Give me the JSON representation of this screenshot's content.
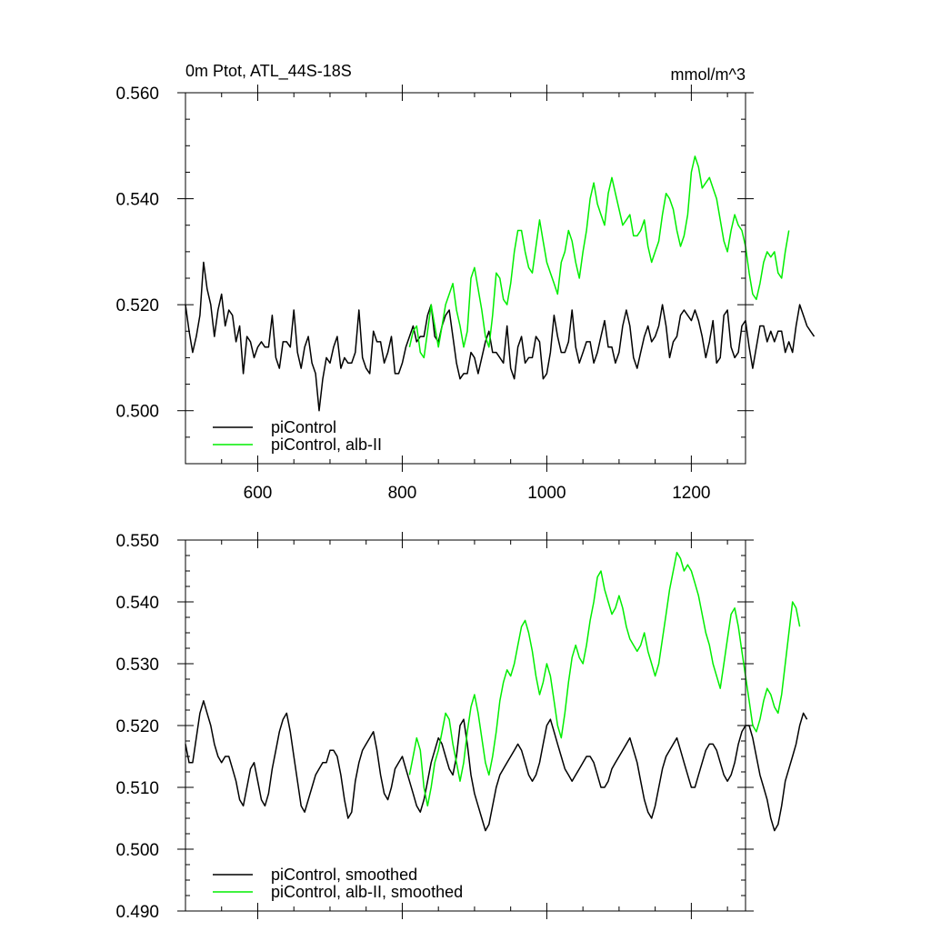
{
  "chart_data": [
    {
      "type": "line",
      "title": "0m Ptot, ATL_44S-18S",
      "units": "mmol/m^3",
      "xlim": [
        500,
        1275
      ],
      "ylim": [
        0.49,
        0.56
      ],
      "xticks": [
        600,
        800,
        1000,
        1200
      ],
      "xtick_labels": [
        "600",
        "800",
        "1000",
        "1200"
      ],
      "yticks": [
        0.5,
        0.52,
        0.54,
        0.56
      ],
      "ytick_labels": [
        "0.500",
        "0.520",
        "0.540",
        "0.560"
      ],
      "legend_position": "lower-left",
      "grid": false,
      "series": [
        {
          "name": "piControl",
          "color": "#000000",
          "x_start": 500,
          "x_step": 5,
          "values": [
            0.52,
            0.515,
            0.511,
            0.514,
            0.518,
            0.528,
            0.523,
            0.52,
            0.514,
            0.519,
            0.522,
            0.516,
            0.519,
            0.518,
            0.513,
            0.516,
            0.507,
            0.514,
            0.513,
            0.51,
            0.512,
            0.513,
            0.512,
            0.512,
            0.518,
            0.51,
            0.508,
            0.513,
            0.513,
            0.512,
            0.519,
            0.511,
            0.508,
            0.512,
            0.514,
            0.509,
            0.507,
            0.5,
            0.506,
            0.51,
            0.509,
            0.512,
            0.514,
            0.508,
            0.51,
            0.509,
            0.509,
            0.511,
            0.519,
            0.51,
            0.508,
            0.507,
            0.515,
            0.513,
            0.513,
            0.509,
            0.511,
            0.514,
            0.507,
            0.507,
            0.509,
            0.512,
            0.514,
            0.516,
            0.513,
            0.514,
            0.514,
            0.518,
            0.52,
            0.514,
            0.513,
            0.516,
            0.518,
            0.519,
            0.514,
            0.509,
            0.506,
            0.507,
            0.507,
            0.511,
            0.51,
            0.507,
            0.51,
            0.513,
            0.515,
            0.511,
            0.511,
            0.51,
            0.509,
            0.516,
            0.508,
            0.506,
            0.512,
            0.514,
            0.509,
            0.51,
            0.51,
            0.514,
            0.513,
            0.506,
            0.507,
            0.511,
            0.518,
            0.514,
            0.511,
            0.511,
            0.513,
            0.519,
            0.512,
            0.509,
            0.511,
            0.513,
            0.513,
            0.509,
            0.511,
            0.514,
            0.517,
            0.512,
            0.512,
            0.509,
            0.511,
            0.516,
            0.519,
            0.516,
            0.51,
            0.508,
            0.511,
            0.514,
            0.516,
            0.513,
            0.514,
            0.516,
            0.52,
            0.516,
            0.51,
            0.513,
            0.514,
            0.518,
            0.519,
            0.518,
            0.517,
            0.519,
            0.517,
            0.514,
            0.51,
            0.513,
            0.517,
            0.509,
            0.51,
            0.518,
            0.519,
            0.512,
            0.51,
            0.511,
            0.516,
            0.517,
            0.512,
            0.508,
            0.512,
            0.516,
            0.516,
            0.513,
            0.515,
            0.513,
            0.515,
            0.515,
            0.511,
            0.513,
            0.511,
            0.516,
            0.52,
            0.518,
            0.516,
            0.515,
            0.514
          ]
        },
        {
          "name": "piControl, alb-II",
          "color": "#00ee00",
          "x_start": 810,
          "x_step": 5,
          "values": [
            0.512,
            0.515,
            0.516,
            0.511,
            0.51,
            0.515,
            0.52,
            0.516,
            0.512,
            0.516,
            0.52,
            0.522,
            0.524,
            0.519,
            0.516,
            0.512,
            0.515,
            0.525,
            0.527,
            0.523,
            0.519,
            0.514,
            0.512,
            0.518,
            0.526,
            0.525,
            0.521,
            0.52,
            0.524,
            0.53,
            0.534,
            0.534,
            0.53,
            0.527,
            0.526,
            0.531,
            0.536,
            0.532,
            0.528,
            0.526,
            0.524,
            0.522,
            0.528,
            0.53,
            0.534,
            0.532,
            0.528,
            0.525,
            0.53,
            0.534,
            0.54,
            0.543,
            0.539,
            0.537,
            0.535,
            0.541,
            0.544,
            0.541,
            0.538,
            0.535,
            0.536,
            0.537,
            0.533,
            0.533,
            0.534,
            0.536,
            0.531,
            0.528,
            0.53,
            0.532,
            0.537,
            0.541,
            0.54,
            0.538,
            0.534,
            0.531,
            0.533,
            0.537,
            0.545,
            0.548,
            0.546,
            0.542,
            0.543,
            0.544,
            0.542,
            0.54,
            0.536,
            0.532,
            0.53,
            0.534,
            0.537,
            0.535,
            0.534,
            0.531,
            0.526,
            0.522,
            0.521,
            0.524,
            0.528,
            0.53,
            0.529,
            0.53,
            0.526,
            0.525,
            0.53,
            0.534
          ]
        }
      ]
    },
    {
      "type": "line",
      "xlim": [
        500,
        1275
      ],
      "ylim": [
        0.49,
        0.55
      ],
      "xticks": [
        600,
        800,
        1000,
        1200
      ],
      "yticks": [
        0.49,
        0.5,
        0.51,
        0.52,
        0.53,
        0.54,
        0.55
      ],
      "ytick_labels": [
        "0.490",
        "0.500",
        "0.510",
        "0.520",
        "0.530",
        "0.540",
        "0.550"
      ],
      "legend_position": "lower-left",
      "grid": false,
      "series": [
        {
          "name": "piControl, smoothed",
          "color": "#000000",
          "x_start": 500,
          "x_step": 5,
          "values": [
            0.517,
            0.514,
            0.514,
            0.518,
            0.522,
            0.524,
            0.522,
            0.52,
            0.517,
            0.515,
            0.514,
            0.515,
            0.515,
            0.513,
            0.511,
            0.508,
            0.507,
            0.51,
            0.513,
            0.514,
            0.511,
            0.508,
            0.507,
            0.509,
            0.513,
            0.516,
            0.519,
            0.521,
            0.522,
            0.519,
            0.515,
            0.511,
            0.507,
            0.506,
            0.508,
            0.51,
            0.512,
            0.513,
            0.514,
            0.514,
            0.516,
            0.516,
            0.515,
            0.512,
            0.508,
            0.505,
            0.506,
            0.511,
            0.514,
            0.516,
            0.517,
            0.518,
            0.519,
            0.516,
            0.512,
            0.509,
            0.508,
            0.51,
            0.513,
            0.514,
            0.515,
            0.513,
            0.511,
            0.509,
            0.507,
            0.506,
            0.508,
            0.511,
            0.514,
            0.516,
            0.518,
            0.517,
            0.515,
            0.513,
            0.512,
            0.515,
            0.52,
            0.521,
            0.517,
            0.512,
            0.509,
            0.507,
            0.505,
            0.503,
            0.504,
            0.507,
            0.51,
            0.512,
            0.513,
            0.514,
            0.515,
            0.516,
            0.517,
            0.516,
            0.514,
            0.512,
            0.511,
            0.512,
            0.514,
            0.517,
            0.52,
            0.521,
            0.519,
            0.517,
            0.515,
            0.513,
            0.512,
            0.511,
            0.512,
            0.513,
            0.514,
            0.515,
            0.515,
            0.514,
            0.512,
            0.51,
            0.51,
            0.511,
            0.513,
            0.514,
            0.515,
            0.516,
            0.517,
            0.518,
            0.516,
            0.514,
            0.511,
            0.508,
            0.506,
            0.505,
            0.507,
            0.51,
            0.513,
            0.515,
            0.516,
            0.517,
            0.518,
            0.516,
            0.514,
            0.512,
            0.51,
            0.51,
            0.512,
            0.514,
            0.516,
            0.517,
            0.517,
            0.516,
            0.514,
            0.512,
            0.511,
            0.512,
            0.514,
            0.517,
            0.519,
            0.52,
            0.52,
            0.518,
            0.515,
            0.512,
            0.51,
            0.508,
            0.505,
            0.503,
            0.504,
            0.507,
            0.511,
            0.513,
            0.515,
            0.517,
            0.52,
            0.522,
            0.521
          ]
        },
        {
          "name": "piControl, alb-II, smoothed",
          "color": "#00ee00",
          "x_start": 810,
          "x_step": 5,
          "values": [
            0.512,
            0.515,
            0.518,
            0.516,
            0.51,
            0.507,
            0.51,
            0.514,
            0.516,
            0.519,
            0.522,
            0.521,
            0.517,
            0.514,
            0.511,
            0.514,
            0.519,
            0.523,
            0.525,
            0.522,
            0.518,
            0.514,
            0.512,
            0.515,
            0.519,
            0.524,
            0.527,
            0.529,
            0.528,
            0.53,
            0.533,
            0.536,
            0.537,
            0.535,
            0.532,
            0.528,
            0.525,
            0.527,
            0.53,
            0.528,
            0.524,
            0.52,
            0.518,
            0.522,
            0.527,
            0.531,
            0.533,
            0.531,
            0.53,
            0.533,
            0.537,
            0.54,
            0.544,
            0.545,
            0.542,
            0.54,
            0.538,
            0.539,
            0.541,
            0.539,
            0.536,
            0.534,
            0.533,
            0.532,
            0.533,
            0.535,
            0.532,
            0.53,
            0.528,
            0.53,
            0.534,
            0.538,
            0.542,
            0.545,
            0.548,
            0.547,
            0.545,
            0.546,
            0.545,
            0.543,
            0.541,
            0.538,
            0.535,
            0.533,
            0.53,
            0.528,
            0.526,
            0.53,
            0.534,
            0.538,
            0.539,
            0.536,
            0.532,
            0.528,
            0.524,
            0.52,
            0.519,
            0.521,
            0.524,
            0.526,
            0.525,
            0.523,
            0.522,
            0.525,
            0.53,
            0.535,
            0.54,
            0.539,
            0.536
          ]
        }
      ]
    }
  ]
}
